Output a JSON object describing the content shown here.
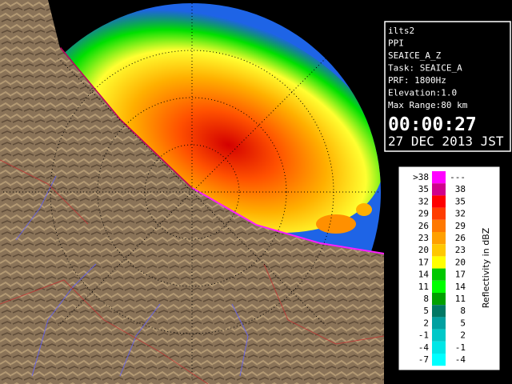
{
  "info": {
    "lines": [
      "ilts2",
      "PPI",
      "SEAICE_A_Z",
      "Task: SEAICE_A",
      "PRF: 1800Hz",
      "Elevation:1.0",
      "Max Range:80 km"
    ],
    "time": "00:00:27",
    "date": "27 DEC 2013 JST"
  },
  "legend": {
    "title": "Reflectivity in dBZ",
    "rows": [
      {
        "low": ">38",
        "high": "---",
        "color": "#ff00ff"
      },
      {
        "low": "35",
        "high": "38",
        "color": "#d0008c"
      },
      {
        "low": "32",
        "high": "35",
        "color": "#ff0000"
      },
      {
        "low": "29",
        "high": "32",
        "color": "#ff3c00"
      },
      {
        "low": "26",
        "high": "29",
        "color": "#ff7800"
      },
      {
        "low": "23",
        "high": "26",
        "color": "#ffa000"
      },
      {
        "low": "20",
        "high": "23",
        "color": "#ffc800"
      },
      {
        "low": "17",
        "high": "20",
        "color": "#ffff00"
      },
      {
        "low": "14",
        "high": "17",
        "color": "#00c800"
      },
      {
        "low": "11",
        "high": "14",
        "color": "#00ff00"
      },
      {
        "low": "8",
        "high": "11",
        "color": "#00a000"
      },
      {
        "low": "5",
        "high": "8",
        "color": "#007864"
      },
      {
        "low": "2",
        "high": "5",
        "color": "#00a0a0"
      },
      {
        "low": "-1",
        "high": "2",
        "color": "#00c8c8"
      },
      {
        "low": "-4",
        "high": "-1",
        "color": "#00e6e6"
      },
      {
        "low": "-7",
        "high": "-4",
        "color": "#00ffff"
      }
    ]
  }
}
